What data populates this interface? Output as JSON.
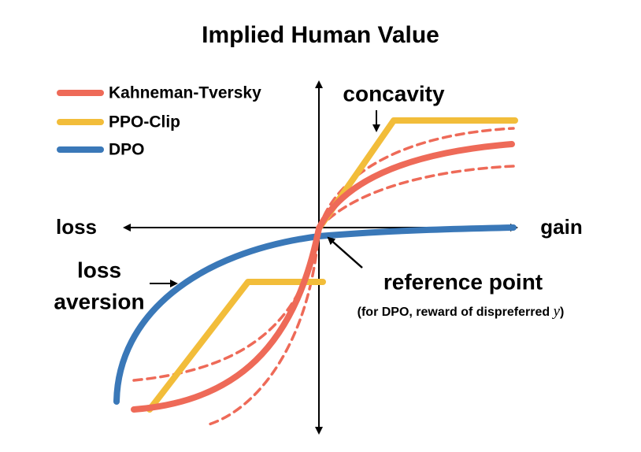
{
  "header": {
    "title": "Implied Human Value"
  },
  "legend": {
    "items": [
      {
        "label": "Kahneman-Tversky"
      },
      {
        "label": "PPO-Clip"
      },
      {
        "label": "DPO"
      }
    ]
  },
  "axes": {
    "left": "loss",
    "right": "gain"
  },
  "annotations": {
    "concavity": "concavity",
    "loss_aversion": [
      "loss",
      "aversion"
    ],
    "reference_point": "reference point",
    "note": {
      "prefix": "(for DPO, reward of dispreferred ",
      "variable": "y",
      "suffix": ")"
    }
  }
}
